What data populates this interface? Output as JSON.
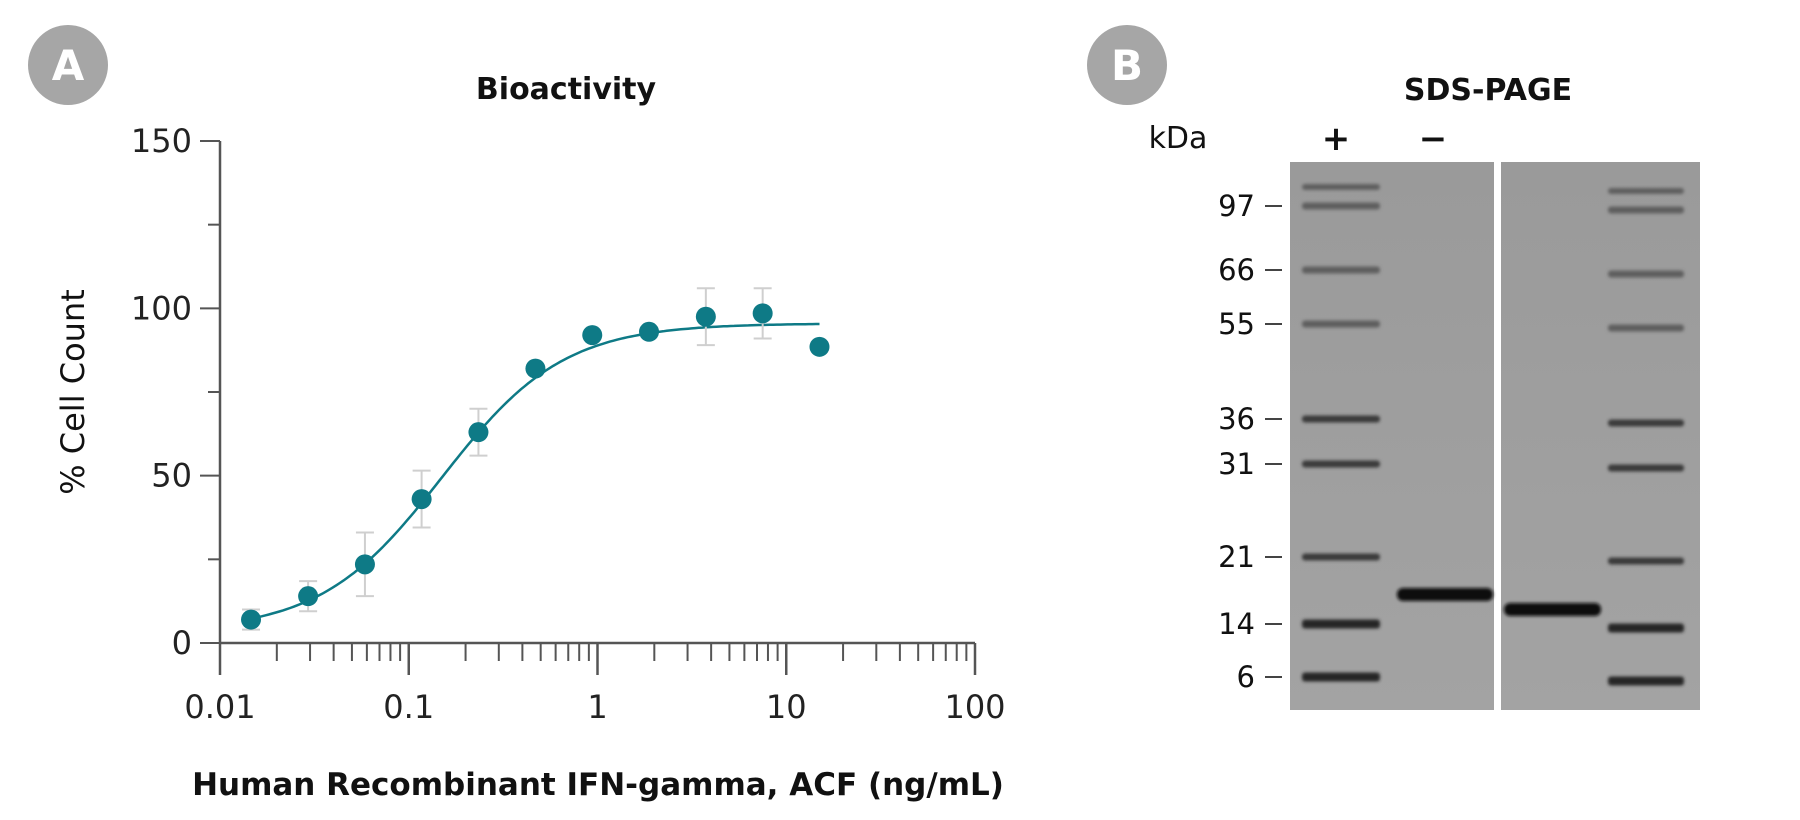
{
  "panels": {
    "a_label": "A",
    "b_label": "B"
  },
  "colors": {
    "series": "#0e7a86",
    "axis": "#555555",
    "error_bar": "#cfcfcf",
    "badge": "#a6a6a6"
  },
  "chart_data": [
    {
      "type": "scatter",
      "title": "Bioactivity",
      "xlabel": "Human Recombinant IFN-gamma, ACF (ng/mL)",
      "ylabel": "% Cell Count",
      "x_scale": "log",
      "xlim": [
        0.01,
        100
      ],
      "ylim": [
        0,
        150
      ],
      "x_ticks": [
        "0.01",
        "0.1",
        "1",
        "10",
        "100"
      ],
      "y_ticks": [
        "0",
        "50",
        "100",
        "150"
      ],
      "grid": false,
      "legend": "none",
      "fit_curve": "sigmoidal dose-response",
      "series": [
        {
          "x": [
            0.0146,
            0.0293,
            0.0586,
            0.117,
            0.234,
            0.469,
            0.938,
            1.875,
            3.75,
            7.5,
            15
          ],
          "y": [
            7,
            14,
            23.5,
            43,
            63,
            82,
            92,
            93,
            97.5,
            98.5,
            88.5
          ],
          "err": [
            3,
            4.5,
            9.5,
            8.5,
            7,
            0,
            0,
            0,
            8.5,
            7.5,
            0
          ]
        }
      ]
    },
    {
      "type": "gel",
      "title": "SDS-PAGE",
      "ylabel": "kDa",
      "markers": [
        "97",
        "66",
        "55",
        "36",
        "31",
        "21",
        "14",
        "6"
      ],
      "lanes": [
        "+",
        "−"
      ]
    }
  ]
}
